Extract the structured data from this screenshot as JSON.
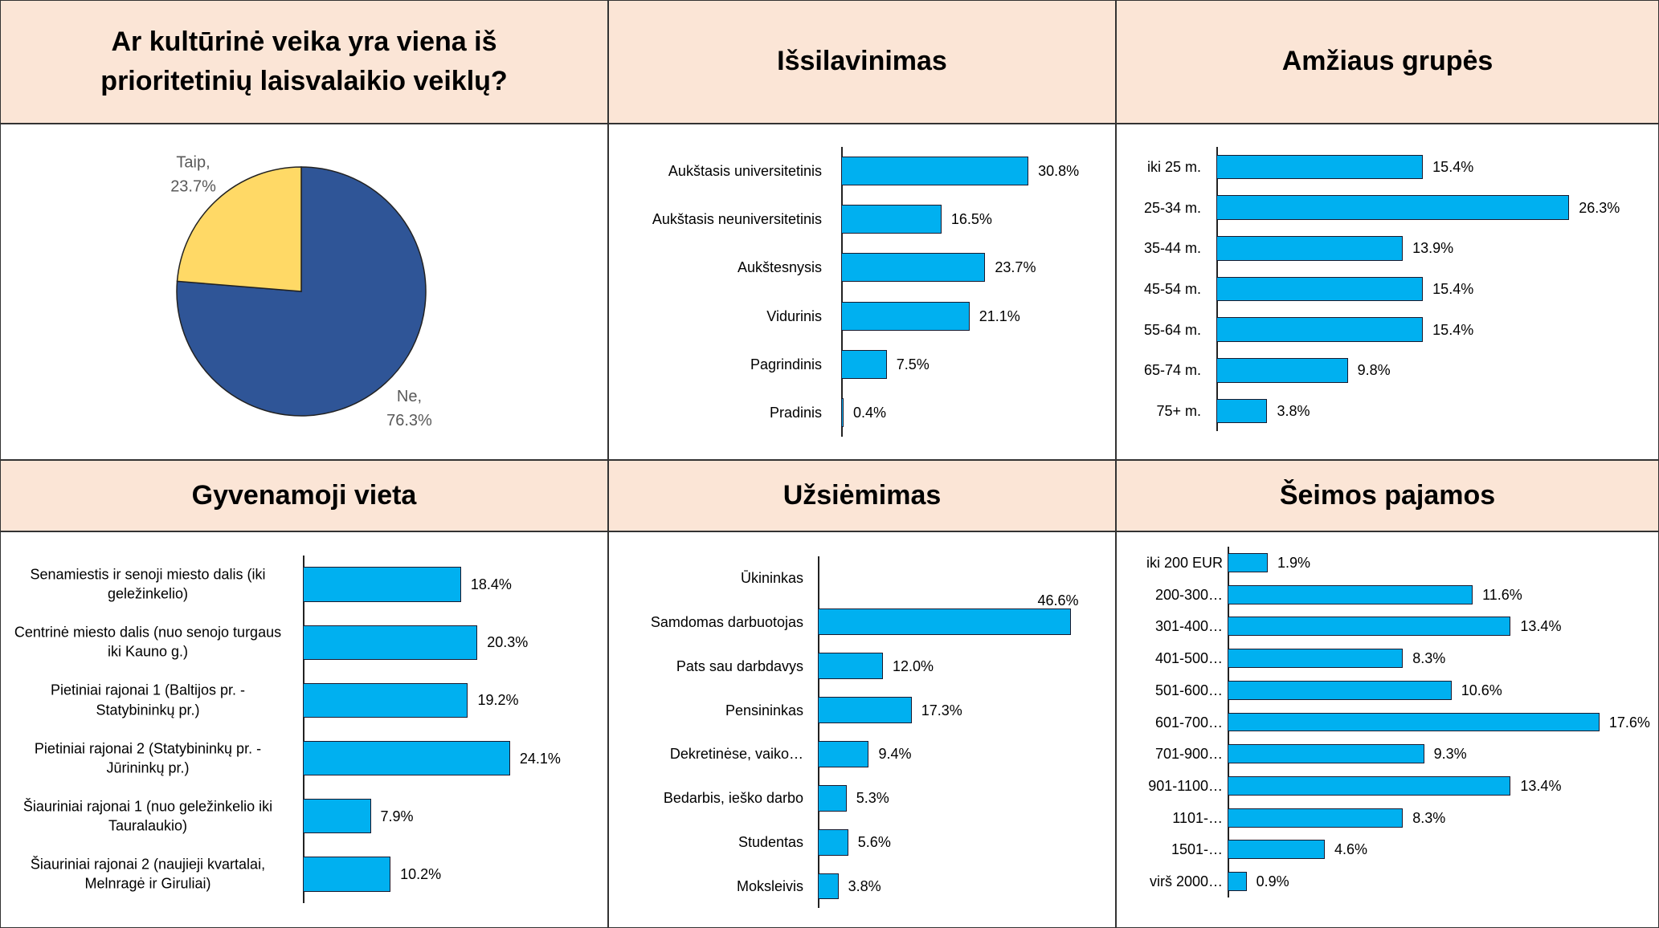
{
  "chart_data": [
    {
      "type": "pie",
      "title": "Ar kultūrinė veika yra viena iš prioritetinių laisvalaikio veiklų?",
      "categories": [
        "Ne,",
        "Taip,"
      ],
      "values": [
        76.3,
        23.7
      ],
      "value_labels": [
        "76.3%",
        "23.7%"
      ],
      "colors": [
        "#2f5597",
        "#ffd966"
      ]
    },
    {
      "type": "hbar",
      "title": "Išsilavinimas",
      "categories": [
        "Aukštasis universitetinis",
        "Aukštasis neuniversitetinis",
        "Aukštesnysis",
        "Vidurinis",
        "Pagrindinis",
        "Pradinis"
      ],
      "values": [
        30.8,
        16.5,
        23.7,
        21.1,
        7.5,
        0.4
      ],
      "value_labels": [
        "30.8%",
        "16.5%",
        "23.7%",
        "21.1%",
        "7.5%",
        "0.4%"
      ],
      "color": "#00b0f0"
    },
    {
      "type": "hbar",
      "title": "Amžiaus grupės",
      "categories": [
        "iki 25 m.",
        "25-34 m.",
        "35-44 m.",
        "45-54 m.",
        "55-64 m.",
        "65-74 m.",
        "75+ m."
      ],
      "values": [
        15.4,
        26.3,
        13.9,
        15.4,
        15.4,
        9.8,
        3.8
      ],
      "value_labels": [
        "15.4%",
        "26.3%",
        "13.9%",
        "15.4%",
        "15.4%",
        "9.8%",
        "3.8%"
      ],
      "color": "#00b0f0"
    },
    {
      "type": "hbar",
      "title": "Gyvenamoji vieta",
      "categories": [
        "Senamiestis ir senoji miesto dalis (iki geležinkelio)",
        "Centrinė miesto dalis (nuo senojo turgaus iki Kauno g.)",
        "Pietiniai rajonai 1 (Baltijos pr. - Statybininkų pr.)",
        "Pietiniai rajonai 2 (Statybininkų pr. - Jūrininkų pr.)",
        "Šiauriniai rajonai 1 (nuo geležinkelio iki Tauralaukio)",
        "Šiauriniai rajonai 2 (naujieji kvartalai, Melnragė ir Giruliai)"
      ],
      "values": [
        18.4,
        20.3,
        19.2,
        24.1,
        7.9,
        10.2
      ],
      "value_labels": [
        "18.4%",
        "20.3%",
        "19.2%",
        "24.1%",
        "7.9%",
        "10.2%"
      ],
      "color": "#00b0f0"
    },
    {
      "type": "hbar",
      "title": "Užsiėmimas",
      "categories": [
        "Ūkininkas",
        "Samdomas darbuotojas",
        "Pats sau darbdavys",
        "Pensininkas",
        "Dekretinėse, vaiko…",
        "Bedarbis, ieško darbo",
        "Studentas",
        "Moksleivis"
      ],
      "values": [
        null,
        46.6,
        12.0,
        17.3,
        9.4,
        5.3,
        5.6,
        3.8
      ],
      "value_labels": [
        null,
        "46.6%",
        "12.0%",
        "17.3%",
        "9.4%",
        "5.3%",
        "5.6%",
        "3.8%"
      ],
      "color": "#00b0f0"
    },
    {
      "type": "hbar",
      "title": "Šeimos pajamos",
      "categories": [
        "iki 200 EUR",
        "200-300…",
        "301-400…",
        "401-500…",
        "501-600…",
        "601-700…",
        "701-900…",
        "901-1100…",
        "1101-…",
        "1501-…",
        "virš 2000…"
      ],
      "values": [
        1.9,
        11.6,
        13.4,
        8.3,
        10.6,
        17.6,
        9.3,
        13.4,
        8.3,
        4.6,
        0.9
      ],
      "value_labels": [
        "1.9%",
        "11.6%",
        "13.4%",
        "8.3%",
        "10.6%",
        "17.6%",
        "9.3%",
        "13.4%",
        "8.3%",
        "4.6%",
        "0.9%"
      ],
      "color": "#00b0f0"
    }
  ]
}
